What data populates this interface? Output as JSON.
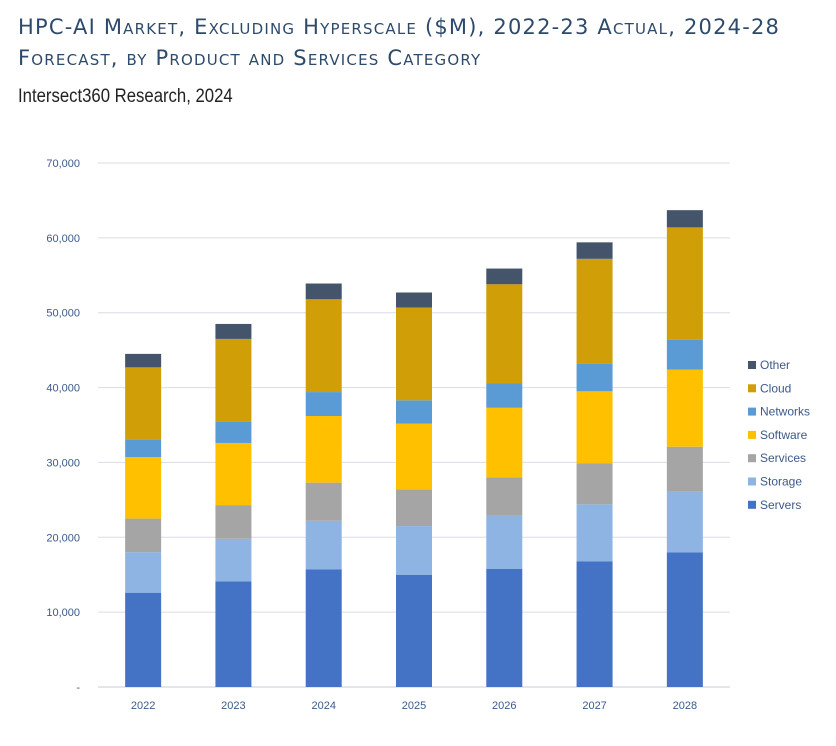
{
  "chart_data": {
    "type": "bar",
    "stacked": true,
    "title": "HPC-AI Market, Excluding Hyperscale ($M), 2022-23 Actual, 2024-28 Forecast, by Product and Services Category",
    "subtitle": "Intersect360 Research, 2024",
    "xlabel": "",
    "ylabel": "",
    "ylim": [
      0,
      70000
    ],
    "yticks": [
      0,
      10000,
      20000,
      30000,
      40000,
      50000,
      60000,
      70000
    ],
    "ytick_labels": [
      "-",
      "10,000",
      "20,000",
      "30,000",
      "40,000",
      "50,000",
      "60,000",
      "70,000"
    ],
    "grid": true,
    "legend_position": "right",
    "categories": [
      "2022",
      "2023",
      "2024",
      "2025",
      "2026",
      "2027",
      "2028"
    ],
    "series": [
      {
        "name": "Servers",
        "color": "#4472c4",
        "values": [
          12600,
          14100,
          15700,
          15000,
          15800,
          16800,
          18000
        ]
      },
      {
        "name": "Storage",
        "color": "#8eb4e3",
        "values": [
          5400,
          5700,
          6500,
          6500,
          7100,
          7600,
          8100
        ]
      },
      {
        "name": "Services",
        "color": "#a5a5a5",
        "values": [
          4500,
          4500,
          5100,
          4900,
          5100,
          5500,
          6000
        ]
      },
      {
        "name": "Software",
        "color": "#ffc000",
        "values": [
          8200,
          8300,
          8900,
          8800,
          9300,
          9600,
          10300
        ]
      },
      {
        "name": "Networks",
        "color": "#5b9bd5",
        "values": [
          2400,
          2900,
          3200,
          3100,
          3300,
          3700,
          4000
        ]
      },
      {
        "name": "Cloud",
        "color": "#d09e06",
        "values": [
          9600,
          11000,
          12400,
          12400,
          13200,
          14000,
          15000
        ]
      },
      {
        "name": "Other",
        "color": "#44546a",
        "values": [
          1800,
          2000,
          2100,
          2000,
          2100,
          2200,
          2300
        ]
      }
    ]
  }
}
